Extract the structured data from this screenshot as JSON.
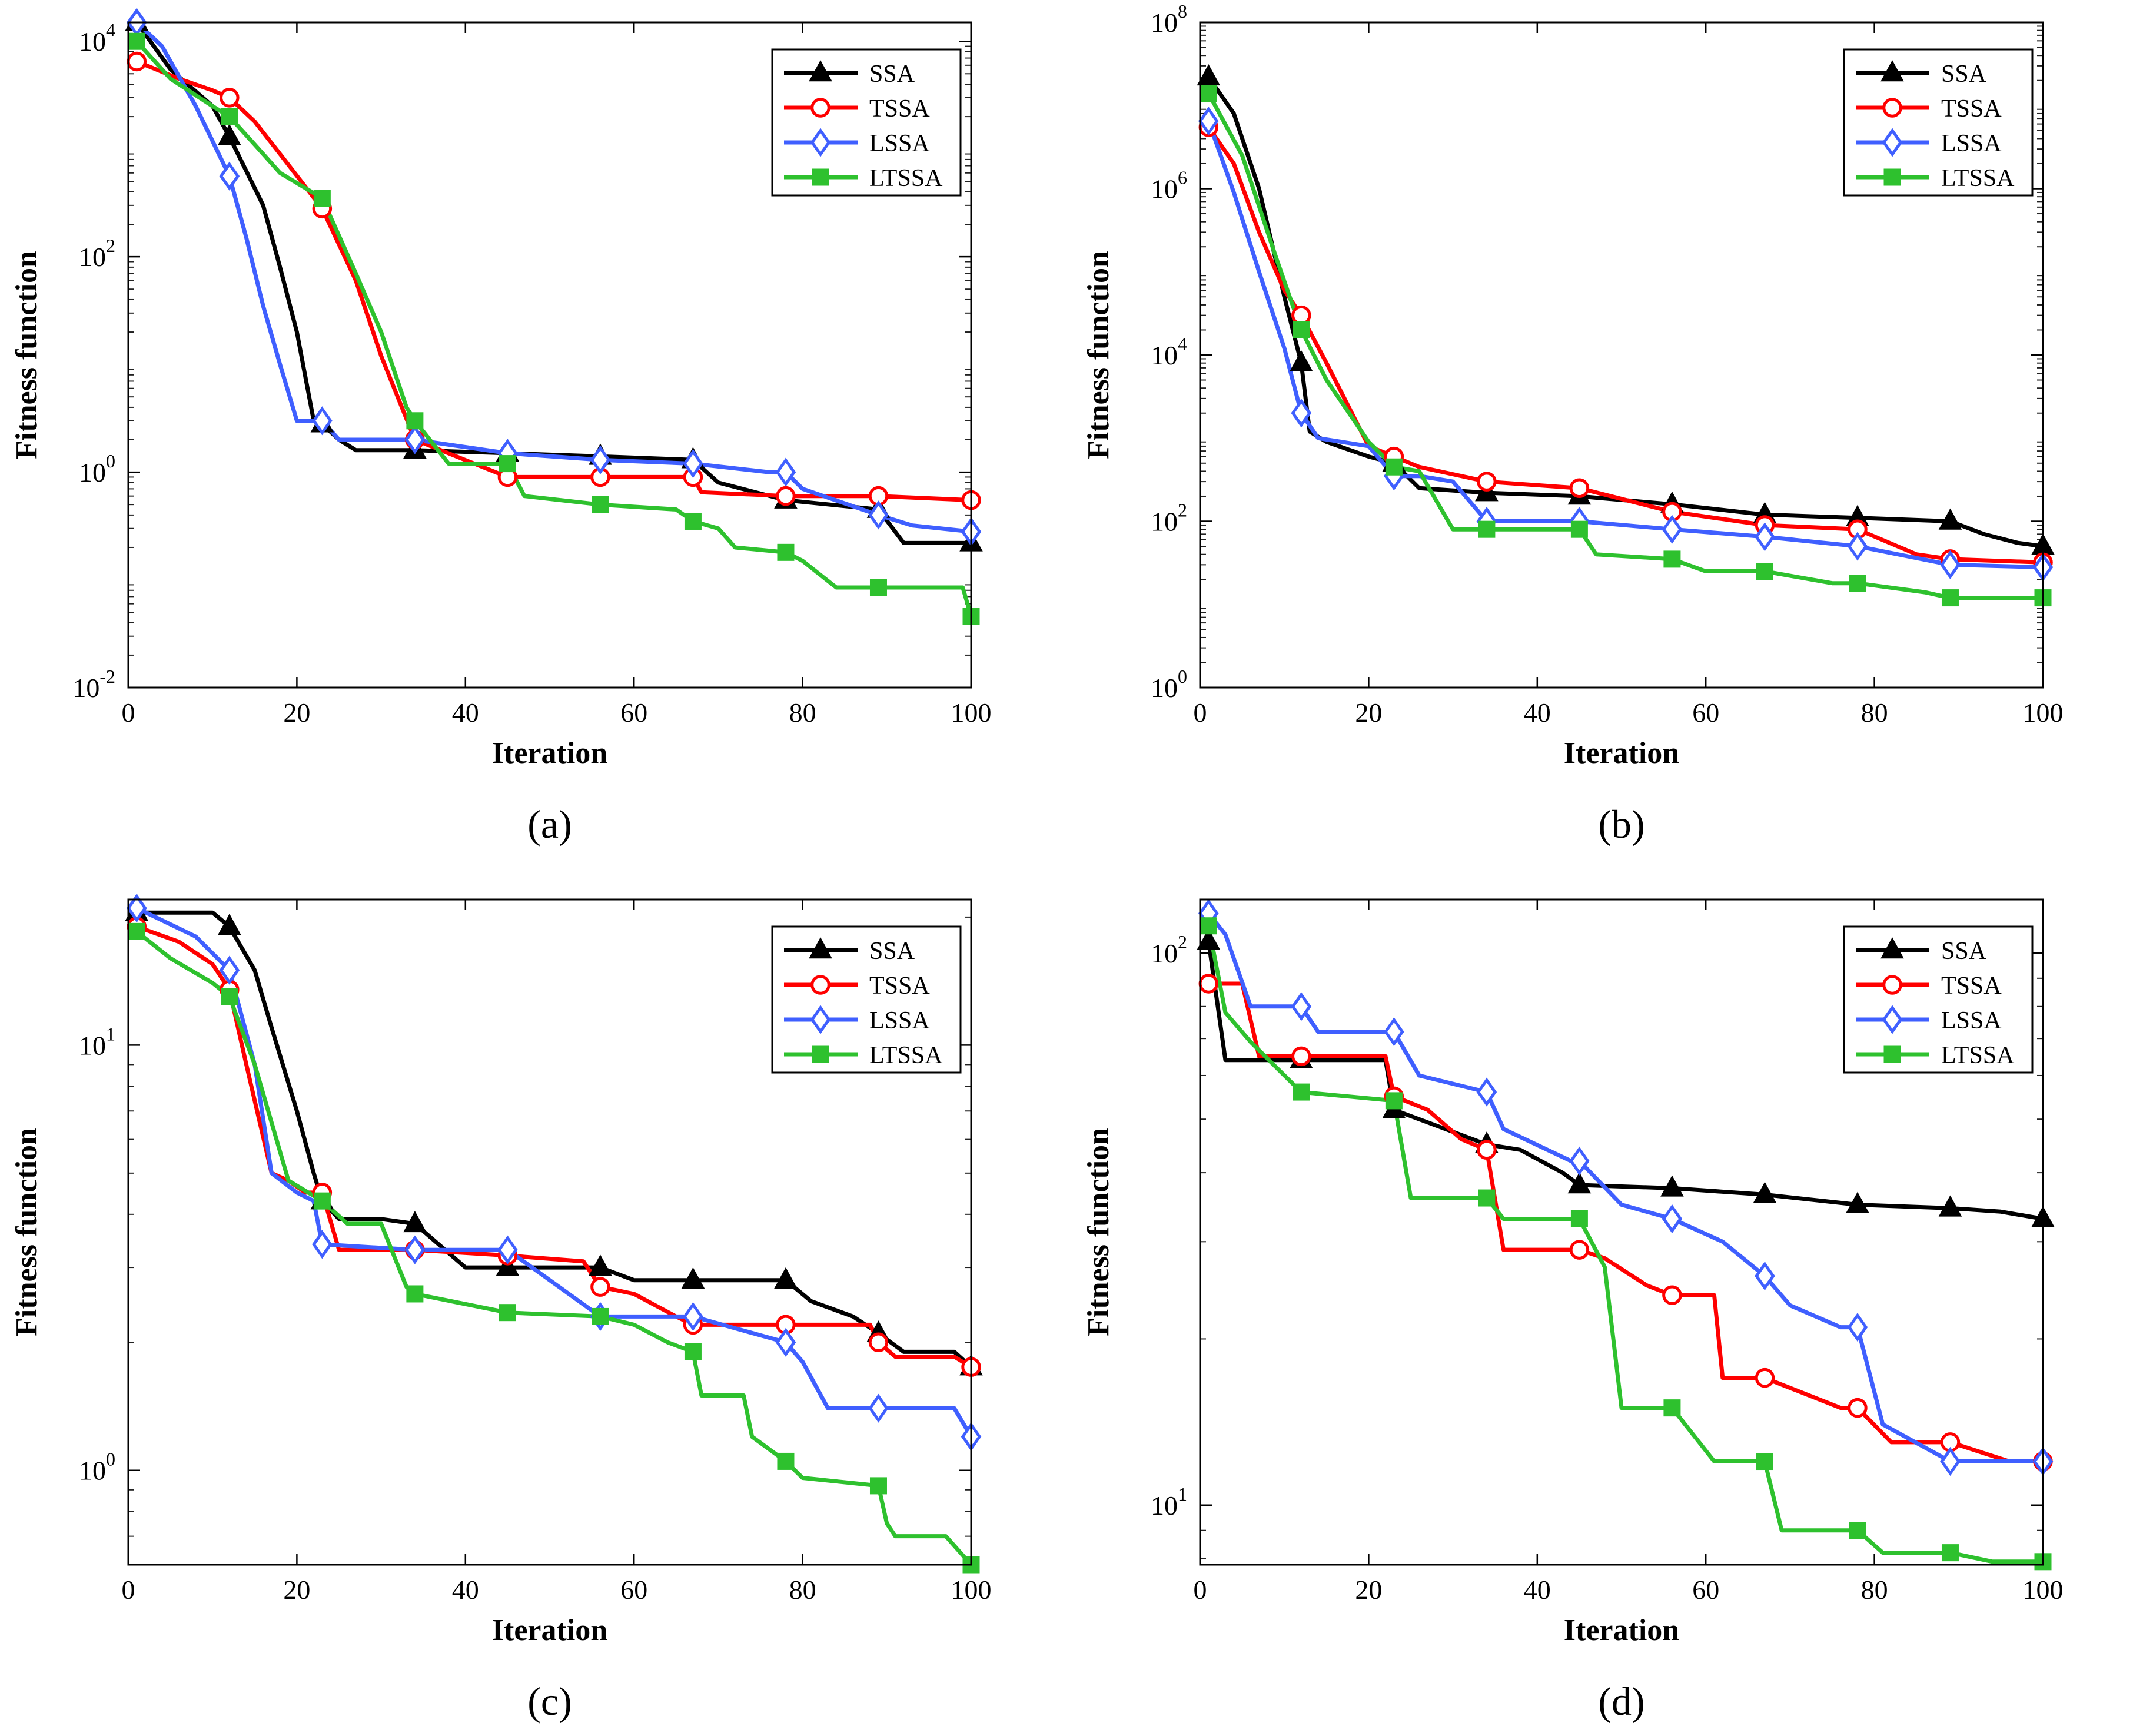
{
  "figure": {
    "series_names": [
      "SSA",
      "TSSA",
      "LSSA",
      "LTSSA"
    ],
    "series_colors": [
      "#000000",
      "#ff0000",
      "#3f5fff",
      "#2ec12e"
    ],
    "marker_shapes": [
      "triangle",
      "circle",
      "diamond",
      "square"
    ]
  },
  "chart_data": [
    {
      "type": "line",
      "panel_label": "(a)",
      "xlabel": "Iteration",
      "ylabel": "Fitness function",
      "yscale": "log",
      "xlim": [
        0,
        100
      ],
      "ylim": [
        0.01,
        15000
      ],
      "xticks": [
        0,
        20,
        40,
        60,
        80,
        100
      ],
      "xtick_labels": [
        "0",
        "20",
        "40",
        "60",
        "80",
        "100"
      ],
      "yticks": [
        0.01,
        1,
        100,
        10000
      ],
      "ytick_labels": [
        {
          "base": "10",
          "exp": "-2"
        },
        {
          "base": "10",
          "exp": "0"
        },
        {
          "base": "10",
          "exp": "2"
        },
        {
          "base": "10",
          "exp": "4"
        }
      ],
      "marker_x": [
        1,
        12,
        23,
        34,
        45,
        56,
        67,
        78,
        89,
        100
      ],
      "series": [
        {
          "name": "SSA",
          "x": [
            1,
            5,
            10,
            12,
            16,
            18,
            20,
            22,
            23,
            25,
            27,
            34,
            45,
            56,
            67,
            70,
            78,
            89,
            92,
            100
          ],
          "values": [
            15000,
            5500,
            2500,
            1300,
            300,
            80,
            20,
            3,
            2.8,
            2,
            1.6,
            1.6,
            1.5,
            1.4,
            1.3,
            0.8,
            0.55,
            0.45,
            0.22,
            0.22
          ]
        },
        {
          "name": "TSSA",
          "x": [
            1,
            6,
            10,
            12,
            15,
            18,
            23,
            27,
            30,
            34,
            45,
            56,
            67,
            68,
            78,
            89,
            100
          ],
          "values": [
            6500,
            4500,
            3500,
            3000,
            1800,
            900,
            280,
            60,
            12,
            2,
            0.9,
            0.9,
            0.9,
            0.65,
            0.6,
            0.6,
            0.55
          ]
        },
        {
          "name": "LSSA",
          "x": [
            1,
            4,
            8,
            12,
            14,
            16,
            18,
            20,
            23,
            25,
            34,
            45,
            56,
            67,
            76,
            78,
            80,
            89,
            93,
            100
          ],
          "values": [
            15000,
            9000,
            2500,
            560,
            150,
            35,
            10,
            3,
            3,
            2,
            2,
            1.5,
            1.3,
            1.2,
            1,
            1,
            0.7,
            0.4,
            0.32,
            0.28
          ]
        },
        {
          "name": "LTSSA",
          "x": [
            1,
            5,
            10,
            12,
            15,
            18,
            23,
            27,
            30,
            33,
            34,
            38,
            45,
            47,
            56,
            65,
            67,
            70,
            72,
            78,
            80,
            84,
            89,
            99,
            100
          ],
          "values": [
            10000,
            4500,
            2500,
            2000,
            1100,
            600,
            350,
            70,
            20,
            4,
            3,
            1.2,
            1.2,
            0.6,
            0.5,
            0.45,
            0.35,
            0.3,
            0.2,
            0.18,
            0.15,
            0.085,
            0.085,
            0.085,
            0.046
          ]
        }
      ]
    },
    {
      "type": "line",
      "panel_label": "(b)",
      "xlabel": "Iteration",
      "ylabel": "Fitness function",
      "yscale": "log",
      "xlim": [
        0,
        100
      ],
      "ylim": [
        1,
        100000000
      ],
      "xticks": [
        0,
        20,
        40,
        60,
        80,
        100
      ],
      "xtick_labels": [
        "0",
        "20",
        "40",
        "60",
        "80",
        "100"
      ],
      "yticks": [
        1,
        100,
        10000,
        1000000,
        100000000
      ],
      "ytick_labels": [
        {
          "base": "10",
          "exp": "0"
        },
        {
          "base": "10",
          "exp": "2"
        },
        {
          "base": "10",
          "exp": "4"
        },
        {
          "base": "10",
          "exp": "6"
        },
        {
          "base": "10",
          "exp": "8"
        }
      ],
      "marker_x": [
        1,
        12,
        23,
        34,
        45,
        56,
        67,
        78,
        89,
        100
      ],
      "series": [
        {
          "name": "SSA",
          "x": [
            1,
            4,
            7,
            10,
            12,
            13,
            15,
            20,
            23,
            26,
            34,
            45,
            56,
            67,
            78,
            89,
            93,
            97,
            100
          ],
          "values": [
            22000000,
            8000000,
            1000000,
            50000,
            8000,
            1200,
            900,
            600,
            500,
            250,
            220,
            200,
            160,
            120,
            110,
            100,
            70,
            55,
            50
          ]
        },
        {
          "name": "TSSA",
          "x": [
            1,
            4,
            7,
            10,
            12,
            15,
            18,
            20,
            23,
            26,
            34,
            45,
            56,
            67,
            78,
            85,
            89,
            100
          ],
          "values": [
            5500000,
            2000000,
            300000,
            60000,
            30000,
            8000,
            2000,
            800,
            600,
            450,
            300,
            250,
            130,
            90,
            80,
            40,
            35,
            32
          ]
        },
        {
          "name": "LSSA",
          "x": [
            1,
            4,
            7,
            10,
            12,
            14,
            20,
            23,
            26,
            30,
            34,
            45,
            56,
            67,
            78,
            89,
            100
          ],
          "values": [
            6500000,
            900000,
            100000,
            12000,
            2000,
            1000,
            800,
            350,
            350,
            300,
            100,
            100,
            80,
            65,
            50,
            30,
            28
          ]
        },
        {
          "name": "LTSSA",
          "x": [
            1,
            5,
            9,
            12,
            15,
            20,
            23,
            26,
            30,
            34,
            45,
            47,
            56,
            60,
            67,
            75,
            78,
            86,
            89,
            100
          ],
          "values": [
            14000000,
            2500000,
            150000,
            20000,
            5000,
            900,
            450,
            400,
            80,
            80,
            80,
            40,
            35,
            25,
            25,
            18,
            18,
            14,
            12,
            12
          ]
        }
      ]
    },
    {
      "type": "line",
      "panel_label": "(c)",
      "xlabel": "Iteration",
      "ylabel": "Fitness function",
      "yscale": "log",
      "xlim": [
        0,
        100
      ],
      "ylim": [
        0.6,
        22
      ],
      "xticks": [
        0,
        20,
        40,
        60,
        80,
        100
      ],
      "xtick_labels": [
        "0",
        "20",
        "40",
        "60",
        "80",
        "100"
      ],
      "yticks": [
        1,
        10
      ],
      "ytick_labels": [
        {
          "base": "10",
          "exp": "0"
        },
        {
          "base": "10",
          "exp": "1"
        }
      ],
      "marker_x": [
        1,
        12,
        23,
        34,
        45,
        56,
        67,
        78,
        89,
        100
      ],
      "series": [
        {
          "name": "SSA",
          "x": [
            1,
            10,
            12,
            15,
            17,
            20,
            22,
            23,
            25,
            30,
            34,
            40,
            45,
            56,
            60,
            67,
            78,
            81,
            86,
            89,
            92,
            98,
            100
          ],
          "values": [
            20.5,
            20.5,
            19,
            15,
            11,
            7,
            5,
            4.3,
            3.9,
            3.9,
            3.8,
            3,
            3,
            3,
            2.8,
            2.8,
            2.8,
            2.5,
            2.3,
            2.1,
            1.9,
            1.9,
            1.75
          ]
        },
        {
          "name": "TSSA",
          "x": [
            1,
            6,
            10,
            12,
            14,
            17,
            19,
            21,
            23,
            25,
            34,
            45,
            54,
            56,
            60,
            65,
            67,
            78,
            88,
            89,
            91,
            98,
            100
          ],
          "values": [
            19,
            17.5,
            15.5,
            13.5,
            9,
            5,
            4.8,
            4.5,
            4.5,
            3.3,
            3.3,
            3.2,
            3.1,
            2.7,
            2.6,
            2.3,
            2.2,
            2.2,
            2.2,
            2.0,
            1.85,
            1.85,
            1.75
          ]
        },
        {
          "name": "LSSA",
          "x": [
            1,
            8,
            12,
            15,
            17,
            20,
            22,
            23,
            34,
            45,
            56,
            67,
            78,
            80,
            83,
            89,
            98,
            100
          ],
          "values": [
            21,
            18,
            15,
            9,
            5,
            4.5,
            4.3,
            3.4,
            3.3,
            3.3,
            2.3,
            2.3,
            2.0,
            1.8,
            1.4,
            1.4,
            1.4,
            1.2
          ]
        },
        {
          "name": "LTSSA",
          "x": [
            1,
            5,
            10,
            12,
            15,
            19,
            23,
            26,
            30,
            33,
            34,
            45,
            56,
            60,
            64,
            67,
            68,
            73,
            74,
            78,
            80,
            89,
            90,
            91,
            97,
            100
          ],
          "values": [
            18.5,
            16,
            14,
            13,
            9,
            4.8,
            4.3,
            3.8,
            3.8,
            2.7,
            2.6,
            2.35,
            2.3,
            2.2,
            2.0,
            1.9,
            1.5,
            1.5,
            1.2,
            1.05,
            0.96,
            0.92,
            0.75,
            0.7,
            0.7,
            0.6
          ]
        }
      ]
    },
    {
      "type": "line",
      "panel_label": "(d)",
      "xlabel": "Iteration",
      "ylabel": "Fitness function",
      "yscale": "log",
      "xlim": [
        0,
        100
      ],
      "ylim": [
        7.8,
        125
      ],
      "xticks": [
        0,
        20,
        40,
        60,
        80,
        100
      ],
      "xtick_labels": [
        "0",
        "20",
        "40",
        "60",
        "80",
        "100"
      ],
      "yticks": [
        10,
        100
      ],
      "ytick_labels": [
        {
          "base": "10",
          "exp": "1"
        },
        {
          "base": "10",
          "exp": "2"
        }
      ],
      "marker_x": [
        1,
        12,
        23,
        34,
        45,
        56,
        67,
        78,
        89,
        100
      ],
      "series": [
        {
          "name": "SSA",
          "x": [
            1,
            3,
            12,
            22,
            23,
            34,
            38,
            43,
            45,
            56,
            67,
            78,
            89,
            95,
            100
          ],
          "values": [
            105,
            64,
            64,
            64,
            52,
            45,
            44,
            40,
            38,
            37.5,
            36.5,
            35,
            34.5,
            34,
            33
          ]
        },
        {
          "name": "TSSA",
          "x": [
            1,
            2,
            5,
            7,
            12,
            22,
            23,
            27,
            31,
            34,
            36,
            45,
            48,
            53,
            56,
            61,
            62,
            67,
            76,
            78,
            82,
            89,
            96,
            100
          ],
          "values": [
            88,
            88,
            88,
            65,
            65,
            65,
            55,
            52,
            46,
            44,
            29,
            29,
            28,
            25,
            24,
            24,
            17,
            17,
            15,
            15,
            13,
            13,
            12,
            12
          ]
        },
        {
          "name": "LSSA",
          "x": [
            1,
            3,
            6,
            12,
            14,
            23,
            26,
            34,
            36,
            44,
            45,
            50,
            56,
            62,
            67,
            70,
            76,
            78,
            81,
            89,
            95,
            100
          ],
          "values": [
            118,
            108,
            80,
            80,
            72,
            72,
            60,
            56,
            48,
            42,
            42,
            35,
            33,
            30,
            26,
            23,
            21,
            21,
            14,
            12,
            12,
            12
          ]
        },
        {
          "name": "LTSSA",
          "x": [
            1,
            3,
            6,
            12,
            23,
            25,
            34,
            36,
            45,
            48,
            50,
            56,
            61,
            67,
            69,
            78,
            81,
            89,
            94,
            100
          ],
          "values": [
            112,
            78,
            69,
            56,
            54,
            36,
            36,
            33,
            33,
            27,
            15,
            15,
            12,
            12,
            9,
            9,
            8.2,
            8.2,
            7.9,
            7.9
          ]
        }
      ]
    }
  ]
}
